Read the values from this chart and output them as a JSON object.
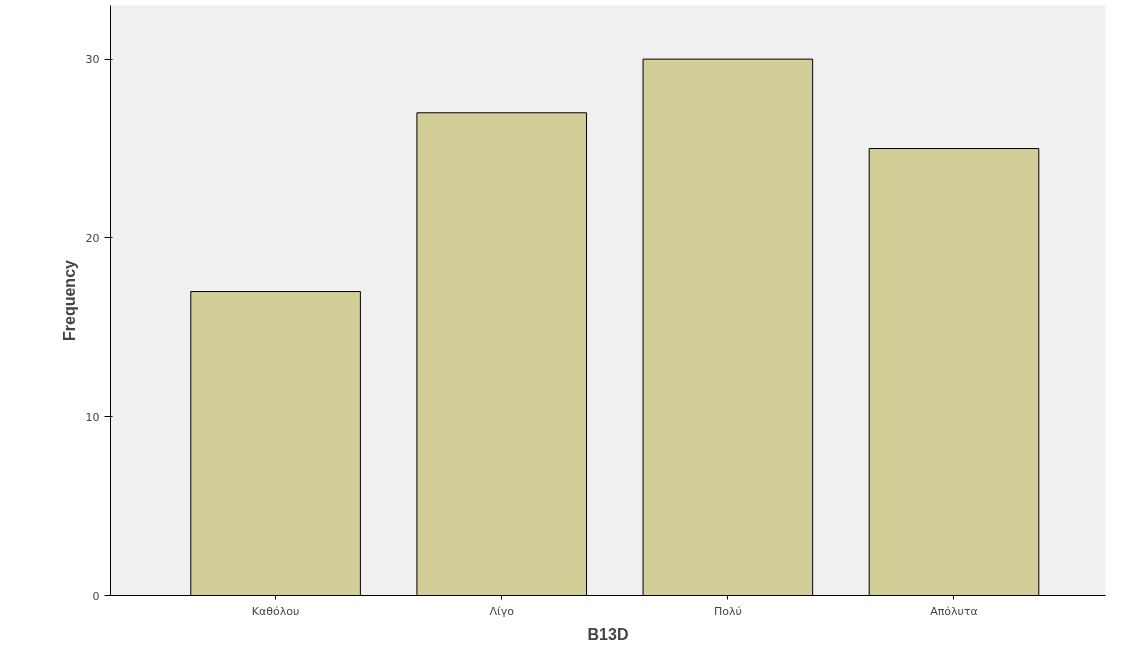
{
  "chart_data": {
    "type": "bar",
    "xlabel": "B13D",
    "ylabel": "Frequency",
    "categories": [
      "Καθόλου",
      "Λίγο",
      "Πολύ",
      "Απόλυτα"
    ],
    "values": [
      17,
      27,
      30,
      25
    ],
    "color": "#d3ce97",
    "ylim": [
      0,
      33
    ],
    "yticks": [
      0,
      10,
      20,
      30
    ],
    "grid": false
  }
}
